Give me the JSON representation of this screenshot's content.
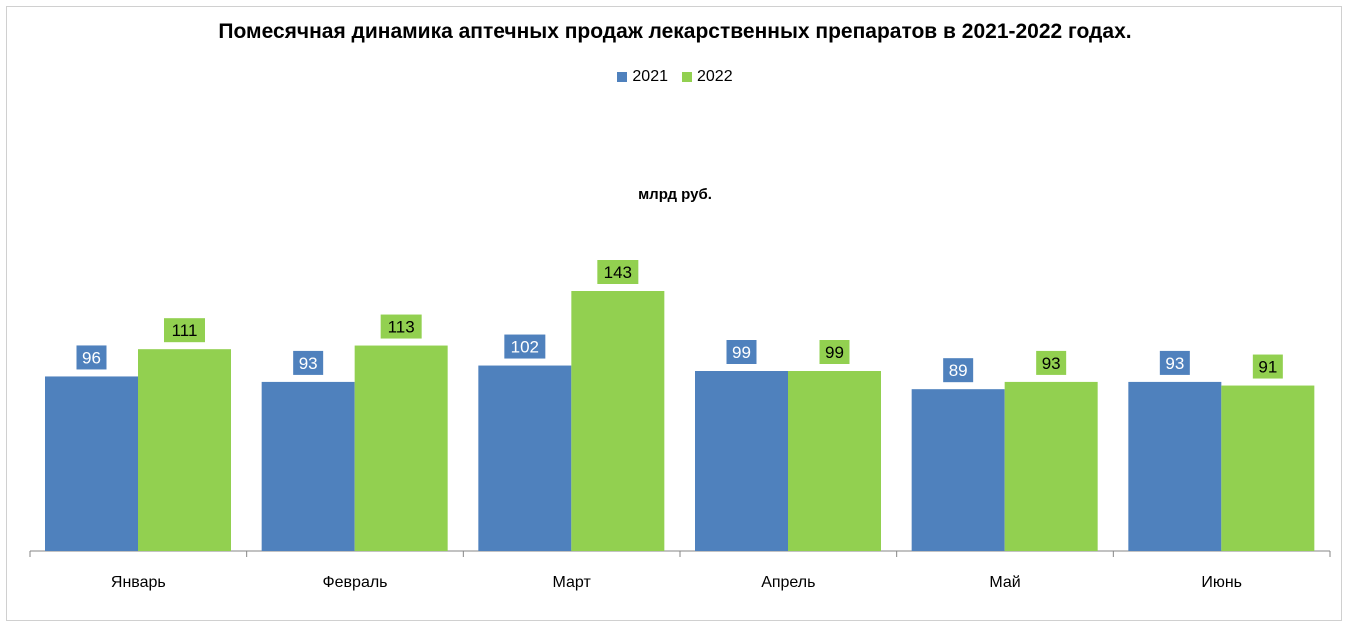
{
  "chart_data": {
    "type": "bar",
    "title": "Помесячная динамика аптечных продаж лекарственных препаратов в 2021-2022 годах.",
    "subtitle": "млрд руб.",
    "categories": [
      "Январь",
      "Февраль",
      "Март",
      "Апрель",
      "Май",
      "Июнь"
    ],
    "series": [
      {
        "name": "2021",
        "color": "#4f81bd",
        "values": [
          96,
          93,
          102,
          99,
          89,
          93
        ]
      },
      {
        "name": "2022",
        "color": "#92d050",
        "values": [
          111,
          113,
          143,
          99,
          93,
          91
        ]
      }
    ],
    "ylim": [
      0,
      143
    ],
    "grid": false,
    "legend_position": "top-center",
    "data_labels": true
  }
}
